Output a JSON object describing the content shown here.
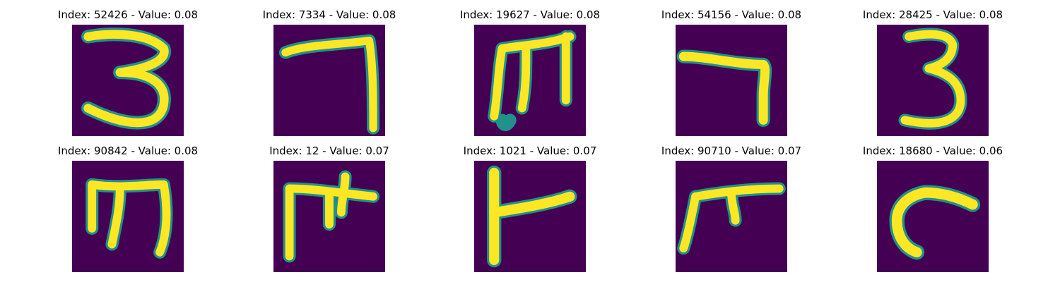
{
  "colors": {
    "background": "#440154",
    "stroke_halo": "#21918c",
    "stroke_core": "#fde725"
  },
  "panels": [
    {
      "title": "Index: 52426 - Value: 0.08",
      "glyph": "three-a"
    },
    {
      "title": "Index: 7334 - Value: 0.08",
      "glyph": "seven-a"
    },
    {
      "title": "Index: 19627 - Value: 0.08",
      "glyph": "m-a"
    },
    {
      "title": "Index: 54156 - Value: 0.08",
      "glyph": "seven-b"
    },
    {
      "title": "Index: 28425 - Value: 0.08",
      "glyph": "three-b"
    },
    {
      "title": "Index: 90842 - Value: 0.08",
      "glyph": "m-b"
    },
    {
      "title": "Index: 12 - Value: 0.07",
      "glyph": "pi-a"
    },
    {
      "title": "Index: 1021 - Value: 0.07",
      "glyph": "t-side"
    },
    {
      "title": "Index: 90710 - Value: 0.07",
      "glyph": "pi-b"
    },
    {
      "title": "Index: 18680 - Value: 0.06",
      "glyph": "c-hook"
    }
  ]
}
